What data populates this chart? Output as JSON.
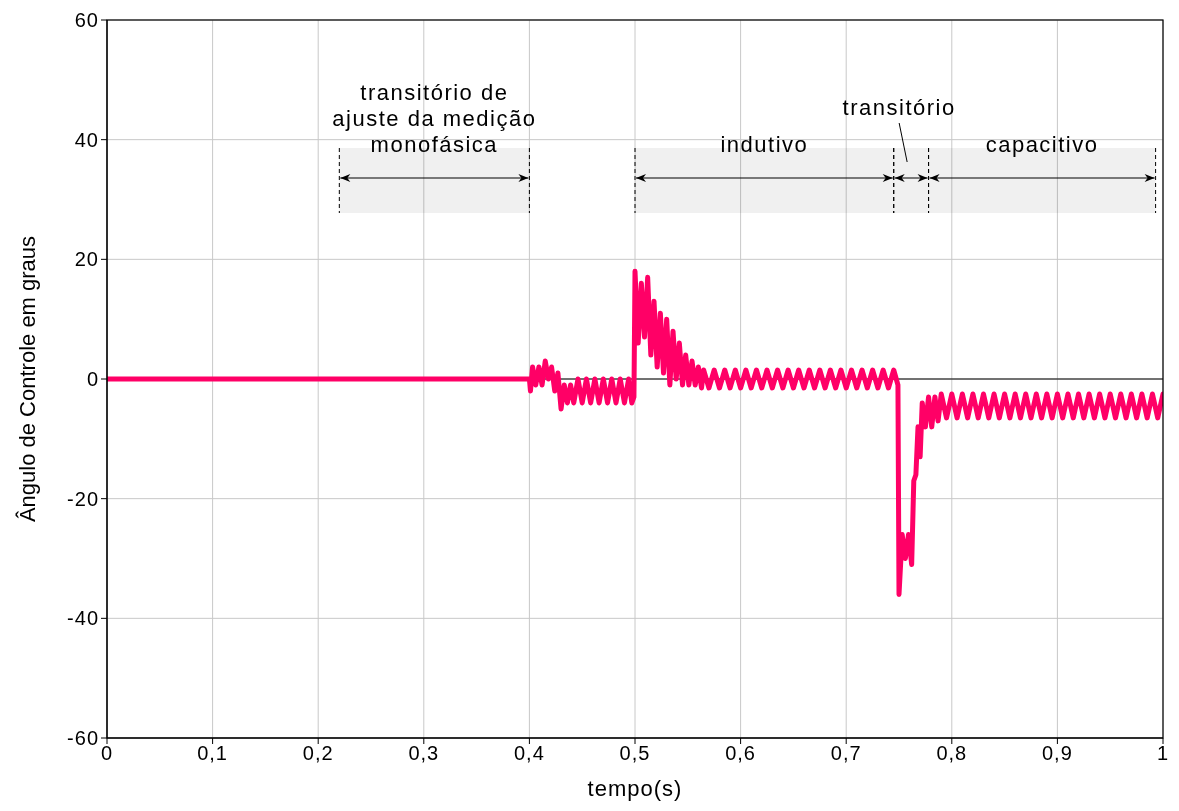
{
  "chart_data": {
    "type": "line",
    "xlabel": "tempo(s)",
    "ylabel": "Ângulo de Controle em graus",
    "xlim": [
      0,
      1
    ],
    "ylim": [
      -60,
      60
    ],
    "xticks": [
      0,
      {
        "value": 0.1,
        "label": "0,1"
      },
      {
        "value": 0.2,
        "label": "0,2"
      },
      {
        "value": 0.3,
        "label": "0,3"
      },
      {
        "value": 0.4,
        "label": "0,4"
      },
      {
        "value": 0.5,
        "label": "0,5"
      },
      {
        "value": 0.6,
        "label": "0,6"
      },
      {
        "value": 0.7,
        "label": "0,7"
      },
      {
        "value": 0.8,
        "label": "0,8"
      },
      {
        "value": 0.9,
        "label": "0,9"
      },
      1
    ],
    "yticks": [
      -60,
      -40,
      -20,
      0,
      20,
      40,
      60
    ],
    "grid": true,
    "marker": "none",
    "line_style": "solid",
    "ref_lines": [
      {
        "axis": "y",
        "value": 0,
        "color": "#000000"
      }
    ],
    "bands": [
      {
        "axis": "x",
        "from": 0.22,
        "to": 0.4,
        "label": "transitório de\najuste da medição\nmonofásica"
      },
      {
        "axis": "x",
        "from": 0.5,
        "to": 0.745,
        "label": "indutivo"
      },
      {
        "axis": "x",
        "from": 0.745,
        "to": 0.778,
        "label": "transitório"
      },
      {
        "axis": "x",
        "from": 0.778,
        "to": 0.993,
        "label": "capacitivo"
      }
    ],
    "series": [
      {
        "color": "#ff0066",
        "x": [
          0,
          0.4,
          0.401,
          0.403,
          0.406,
          0.409,
          0.412,
          0.415,
          0.418,
          0.421,
          0.424,
          0.427,
          0.43,
          0.433,
          0.436,
          0.439,
          0.442,
          0.446,
          0.45,
          0.454,
          0.458,
          0.462,
          0.466,
          0.47,
          0.474,
          0.478,
          0.482,
          0.486,
          0.49,
          0.494,
          0.497,
          0.499,
          0.5,
          0.503,
          0.506,
          0.509,
          0.512,
          0.515,
          0.518,
          0.521,
          0.524,
          0.527,
          0.53,
          0.533,
          0.536,
          0.539,
          0.542,
          0.545,
          0.548,
          0.551,
          0.554,
          0.557,
          0.56,
          0.563,
          0.565,
          0.57,
          0.575,
          0.58,
          0.585,
          0.59,
          0.595,
          0.6,
          0.605,
          0.61,
          0.615,
          0.62,
          0.625,
          0.63,
          0.635,
          0.64,
          0.645,
          0.65,
          0.655,
          0.66,
          0.665,
          0.67,
          0.675,
          0.68,
          0.685,
          0.69,
          0.695,
          0.7,
          0.705,
          0.71,
          0.715,
          0.72,
          0.725,
          0.73,
          0.735,
          0.74,
          0.745,
          0.749,
          0.75,
          0.753,
          0.756,
          0.759,
          0.762,
          0.764,
          0.766,
          0.768,
          0.77,
          0.772,
          0.775,
          0.778,
          0.781,
          0.784,
          0.787,
          0.79,
          0.795,
          0.8,
          0.805,
          0.81,
          0.815,
          0.82,
          0.825,
          0.83,
          0.835,
          0.84,
          0.845,
          0.85,
          0.855,
          0.86,
          0.865,
          0.87,
          0.875,
          0.88,
          0.885,
          0.89,
          0.895,
          0.9,
          0.905,
          0.91,
          0.915,
          0.92,
          0.925,
          0.93,
          0.935,
          0.94,
          0.945,
          0.95,
          0.955,
          0.96,
          0.965,
          0.97,
          0.975,
          0.98,
          0.985,
          0.99,
          0.995,
          1
        ],
        "values": [
          0,
          0,
          -2,
          2,
          -1,
          2,
          -1,
          3,
          0,
          2,
          -2,
          1,
          -5,
          -1,
          -4,
          -1,
          -4,
          0,
          -4,
          0,
          -4,
          0,
          -4,
          0,
          -4,
          0,
          -4,
          0,
          -4,
          0,
          -4,
          -3,
          18,
          6,
          16,
          7,
          17,
          4,
          13,
          2,
          11,
          1,
          10,
          -1,
          8,
          0,
          6,
          -1,
          4,
          -1,
          3,
          -1,
          2,
          -1.5,
          1.5,
          -1.5,
          1.5,
          -1.5,
          1.5,
          -1.5,
          1.5,
          -1.5,
          1.5,
          -1.5,
          1.5,
          -1.5,
          1.5,
          -1.5,
          1.5,
          -1.5,
          1.5,
          -1.5,
          1.5,
          -1.5,
          1.5,
          -1.5,
          1.5,
          -1.5,
          1.5,
          -1.5,
          1.5,
          -1.5,
          1.5,
          -1.5,
          1.5,
          -1.5,
          1.5,
          -1.5,
          1.5,
          -1.5,
          1.5,
          -1,
          -36,
          -26,
          -30,
          -26,
          -31,
          -17,
          -16,
          -8,
          -13,
          -4,
          -8,
          -3,
          -8,
          -3,
          -7,
          -2.5,
          -6.5,
          -2.5,
          -6.5,
          -2.5,
          -6.5,
          -2.5,
          -6.5,
          -2.5,
          -6.5,
          -2.5,
          -6.5,
          -2.5,
          -6.5,
          -2.5,
          -6.5,
          -2.5,
          -6.5,
          -2.5,
          -6.5,
          -2.5,
          -6.5,
          -2.5,
          -6.5,
          -2.5,
          -6.5,
          -2.5,
          -6.5,
          -2.5,
          -6.5,
          -2.5,
          -6.5,
          -2.5,
          -6.5,
          -2.5,
          -6.5,
          -2.5,
          -6.5,
          -2.5,
          -6.5,
          -2.5,
          -6.5,
          -2.5
        ]
      }
    ]
  }
}
